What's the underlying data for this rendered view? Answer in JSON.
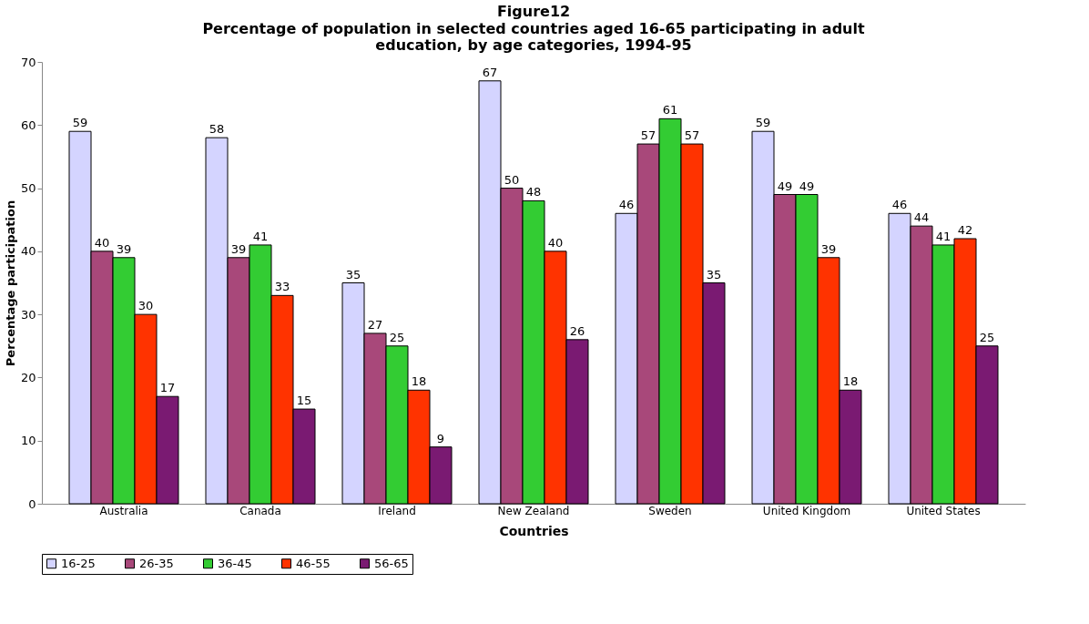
{
  "chart_data": {
    "type": "bar",
    "title": "Figure12",
    "subtitle": "Percentage of population in selected countries aged 16-65 participating in adult education, by age categories, 1994-95",
    "xlabel": "Countries",
    "ylabel": "Percentage participation",
    "categories": [
      "Australia",
      "Canada",
      "Ireland",
      "New Zealand",
      "Sweden",
      "United Kingdom",
      "United States"
    ],
    "series": [
      {
        "name": "16-25",
        "color": "#d4d4ff",
        "values": [
          59,
          58,
          35,
          67,
          46,
          59,
          46
        ]
      },
      {
        "name": "26-35",
        "color": "#a8487a",
        "values": [
          40,
          39,
          27,
          50,
          57,
          49,
          44
        ]
      },
      {
        "name": "36-45",
        "color": "#33cc33",
        "values": [
          39,
          41,
          25,
          48,
          61,
          49,
          41
        ]
      },
      {
        "name": "46-55",
        "color": "#ff3300",
        "values": [
          30,
          33,
          18,
          40,
          57,
          39,
          42
        ]
      },
      {
        "name": "56-65",
        "color": "#7a1a72",
        "values": [
          17,
          15,
          9,
          26,
          35,
          18,
          25
        ]
      }
    ],
    "ylim": [
      0,
      70
    ],
    "yticks": [
      0,
      10,
      20,
      30,
      40,
      50,
      60,
      70
    ],
    "grid": false,
    "legend": "bottom",
    "data_labels": true
  }
}
